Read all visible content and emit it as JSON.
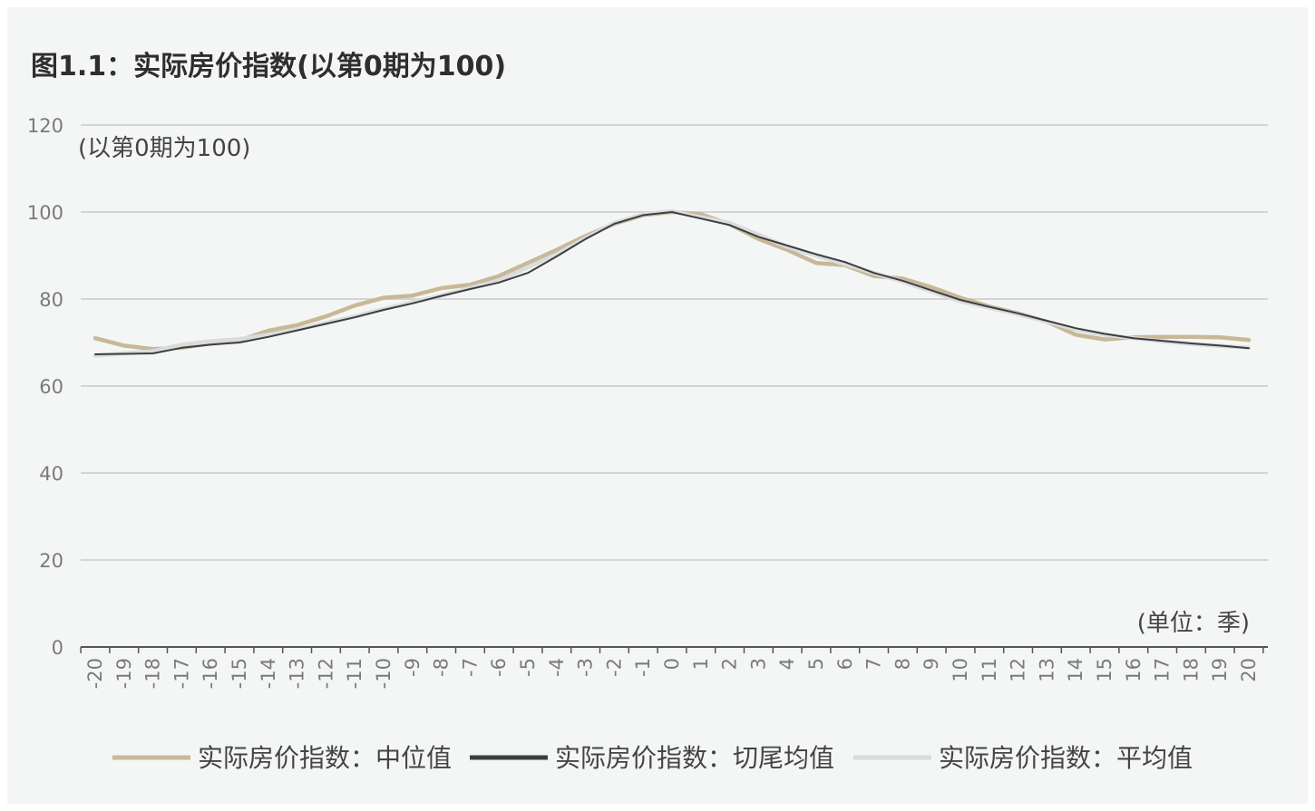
{
  "title": "图1.1：实际房价指数(以第0期为100)",
  "colors": {
    "background": "#f4f6f5",
    "grid": "#d4d4d4",
    "axis": "#555555",
    "median": "#c8b898",
    "trimmed_mean": "#3b3f42",
    "mean": "#dadcdc"
  },
  "chart_data": {
    "type": "line",
    "title": "图1.1：实际房价指数(以第0期为100)",
    "ylabel": "(以第0期为100)",
    "xlabel": "(单位：季)",
    "ylim": [
      0,
      120
    ],
    "yticks": [
      0,
      20,
      40,
      60,
      80,
      100,
      120
    ],
    "x": [
      "-20",
      "-19",
      "-18",
      "-17",
      "-16",
      "-15",
      "-14",
      "-13",
      "-12",
      "-11",
      "-10",
      "-9",
      "-8",
      "-7",
      "-6",
      "-5",
      "-4",
      "-3",
      "-2",
      "-1",
      "0",
      "1",
      "2",
      "3",
      "4",
      "5",
      "6",
      "7",
      "8",
      "9",
      "10",
      "11",
      "12",
      "13",
      "14",
      "15",
      "16",
      "17",
      "18",
      "19",
      "20"
    ],
    "grid": true,
    "legend_position": "bottom",
    "series": [
      {
        "name": "实际房价指数：中位值",
        "color": "#c8b898",
        "values": [
          71.0,
          69.3,
          68.5,
          68.8,
          69.8,
          70.5,
          72.7,
          74.0,
          76.0,
          78.5,
          80.3,
          80.8,
          82.5,
          83.3,
          85.3,
          88.3,
          91.3,
          94.5,
          97.3,
          99.3,
          100.0,
          99.5,
          97.2,
          93.8,
          91.3,
          88.3,
          87.8,
          85.3,
          84.7,
          82.7,
          80.3,
          78.3,
          76.7,
          74.8,
          71.8,
          70.7,
          71.2,
          71.3,
          71.3,
          71.2,
          70.6
        ],
        "line_width": 4.5
      },
      {
        "name": "实际房价指数：切尾均值",
        "color": "#3b3f42",
        "values": [
          67.3,
          67.4,
          67.5,
          68.8,
          69.5,
          70.0,
          71.3,
          72.8,
          74.3,
          75.8,
          77.5,
          79.0,
          80.7,
          82.3,
          83.8,
          86.0,
          89.8,
          93.8,
          97.3,
          99.3,
          100.0,
          98.5,
          97.0,
          94.3,
          92.3,
          90.3,
          88.5,
          86.0,
          84.2,
          82.0,
          79.8,
          78.2,
          76.7,
          75.0,
          73.3,
          72.0,
          71.0,
          70.4,
          69.8,
          69.3,
          68.7
        ],
        "line_width": 2
      },
      {
        "name": "实际房价指数：平均值",
        "color": "#dadcdc",
        "values": [
          67.0,
          67.5,
          68.0,
          69.5,
          70.3,
          70.8,
          71.8,
          73.0,
          74.5,
          76.0,
          77.7,
          79.3,
          80.8,
          82.5,
          84.3,
          87.3,
          90.3,
          94.0,
          97.5,
          99.5,
          100.2,
          98.8,
          97.5,
          94.8,
          92.0,
          90.0,
          88.0,
          86.0,
          84.0,
          81.7,
          79.5,
          78.0,
          76.5,
          74.8,
          73.0,
          71.8,
          71.0,
          70.3,
          69.7,
          69.2,
          68.8
        ],
        "line_width": 4.5
      }
    ]
  }
}
